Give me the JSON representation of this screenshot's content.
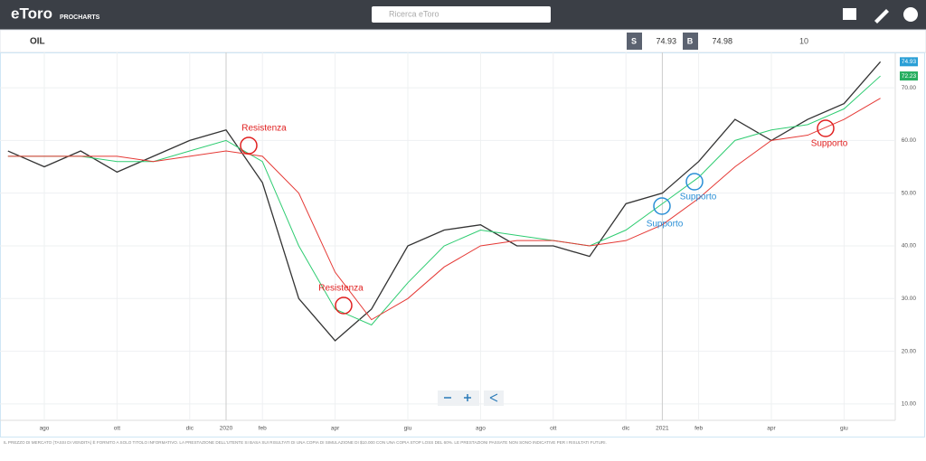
{
  "header": {
    "logo": "eToro",
    "product": "PROCHARTS",
    "search_placeholder": "Ricerca eToro"
  },
  "toolbar": {
    "instrument": "OIL",
    "sell_label": "S",
    "sell_price": "74.93",
    "buy_label": "B",
    "buy_price": "74.98",
    "interval": "10"
  },
  "chart_data": {
    "type": "line",
    "x": [
      "2019-07",
      "2019-08",
      "2019-09",
      "2019-10",
      "2019-11",
      "2019-12",
      "2020-01",
      "2020-02",
      "2020-03",
      "2020-04",
      "2020-05",
      "2020-06",
      "2020-07",
      "2020-08",
      "2020-09",
      "2020-10",
      "2020-11",
      "2020-12",
      "2021-01",
      "2021-02",
      "2021-03",
      "2021-04",
      "2021-05",
      "2021-06",
      "2021-07"
    ],
    "series": [
      {
        "color": "#333333",
        "values": [
          58,
          55,
          58,
          54,
          57,
          60,
          62,
          52,
          30,
          22,
          28,
          40,
          43,
          44,
          40,
          40,
          38,
          48,
          50,
          56,
          64,
          60,
          64,
          67,
          74.93
        ]
      },
      {
        "color": "#2ecc71",
        "values": [
          57,
          57,
          57,
          56,
          56,
          58,
          60,
          56,
          40,
          28,
          25,
          33,
          40,
          43,
          42,
          41,
          40,
          43,
          48,
          53,
          60,
          62,
          63,
          66,
          72.23
        ]
      },
      {
        "color": "#e53935",
        "values": [
          57,
          57,
          57,
          57,
          56,
          57,
          58,
          57,
          50,
          35,
          26,
          30,
          36,
          40,
          41,
          41,
          40,
          41,
          44,
          49,
          55,
          60,
          61,
          64,
          68
        ]
      }
    ],
    "price_badges": [
      {
        "value": 74.93,
        "label": "74.93",
        "color": "#2a9fd6"
      },
      {
        "value": 72.23,
        "label": "72.23",
        "color": "#27ae60"
      }
    ],
    "ylim": [
      6.9,
      76.7
    ],
    "yticks": [
      {
        "value": 10,
        "label": "10.00"
      },
      {
        "value": 20,
        "label": "20.00"
      },
      {
        "value": 30,
        "label": "30.00"
      },
      {
        "value": 40,
        "label": "40.00"
      },
      {
        "value": 50,
        "label": "50.00"
      },
      {
        "value": 60,
        "label": "60.00"
      },
      {
        "value": 70,
        "label": "70.00"
      }
    ],
    "xticks": [
      {
        "value": "2019-08",
        "label": "ago"
      },
      {
        "value": "2019-10",
        "label": "ott"
      },
      {
        "value": "2019-12",
        "label": "dic"
      },
      {
        "value": "2020-01",
        "label": "2020"
      },
      {
        "value": "2020-02",
        "label": "feb"
      },
      {
        "value": "2020-04",
        "label": "apr"
      },
      {
        "value": "2020-06",
        "label": "giu"
      },
      {
        "value": "2020-08",
        "label": "ago"
      },
      {
        "value": "2020-10",
        "label": "ott"
      },
      {
        "value": "2020-12",
        "label": "dic"
      },
      {
        "value": "2021-01",
        "label": "2021"
      },
      {
        "value": "2021-02",
        "label": "feb"
      },
      {
        "value": "2021-04",
        "label": "apr"
      },
      {
        "value": "2021-06",
        "label": "giu"
      }
    ],
    "grid": true,
    "annotations": [
      {
        "text": "Resistenza",
        "color": "#e02020"
      },
      {
        "text": "Resistenza",
        "color": "#e02020"
      },
      {
        "text": "Supporto",
        "color": "#2a8fd6"
      },
      {
        "text": "Supporto",
        "color": "#2a8fd6"
      },
      {
        "text": "Supporto",
        "color": "#e02020"
      }
    ]
  },
  "footer": {
    "disclaimer": "IL PREZZO DI MERCATO (TASSI DI VENDITA) È FORNITO A SOLO TITOLO INFORMATIVO. LA PRESTAZIONE DELL'UTENTE SI BASA SUI RISULTATI DI UNA COPIA DI SIMULAZIONE DI $10.000 CON UNA COPIA STOP LOSS DEL 60%. LE PRESTAZIONI PASSATE NON SONO INDICATIVE PER I RISULTATI FUTURI."
  }
}
